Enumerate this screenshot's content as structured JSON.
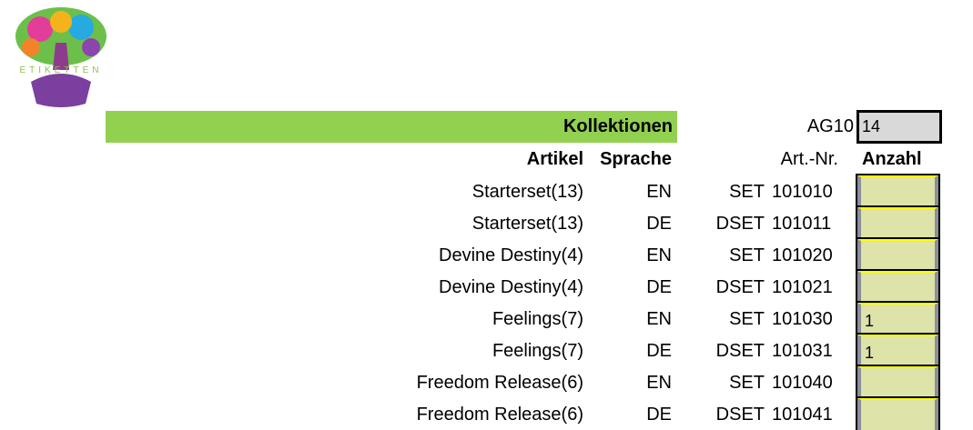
{
  "logo": {
    "text": "ETIKETTEN"
  },
  "header": {
    "title": "Kollektionen",
    "cell_ref": "AG10",
    "cell_value": "14"
  },
  "columns": {
    "artikel": "Artikel",
    "sprache": "Sprache",
    "artnr": "Art.-Nr.",
    "anzahl": "Anzahl"
  },
  "rows": [
    {
      "artikel": "Starterset(13)",
      "sprache": "EN",
      "prefix": "SET",
      "nr": "101010",
      "anzahl": ""
    },
    {
      "artikel": "Starterset(13)",
      "sprache": "DE",
      "prefix": "DSET",
      "nr": "101011",
      "anzahl": ""
    },
    {
      "artikel": "Devine Destiny(4)",
      "sprache": "EN",
      "prefix": "SET",
      "nr": "101020",
      "anzahl": ""
    },
    {
      "artikel": "Devine Destiny(4)",
      "sprache": "DE",
      "prefix": "DSET",
      "nr": "101021",
      "anzahl": ""
    },
    {
      "artikel": "Feelings(7)",
      "sprache": "EN",
      "prefix": "SET",
      "nr": "101030",
      "anzahl": "1"
    },
    {
      "artikel": "Feelings(7)",
      "sprache": "DE",
      "prefix": "DSET",
      "nr": "101031",
      "anzahl": "1"
    },
    {
      "artikel": "Freedom Release(6)",
      "sprache": "EN",
      "prefix": "SET",
      "nr": "101040",
      "anzahl": ""
    },
    {
      "artikel": "Freedom Release(6)",
      "sprache": "DE",
      "prefix": "DSET",
      "nr": "101041",
      "anzahl": ""
    }
  ]
}
